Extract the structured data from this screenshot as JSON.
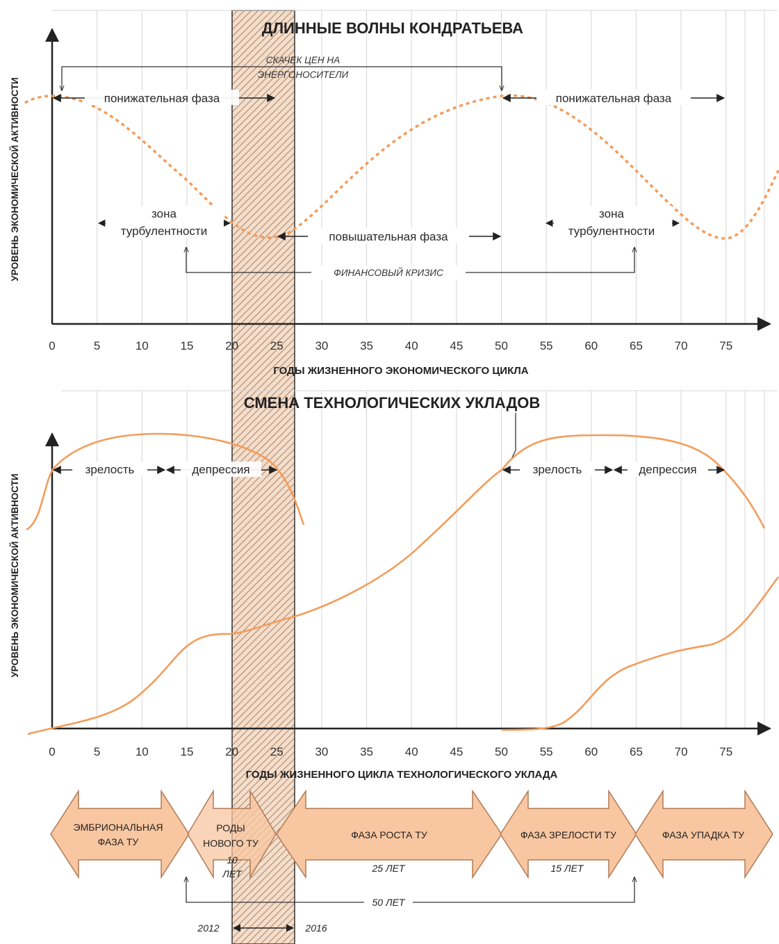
{
  "colors": {
    "curve": "#f39c5a",
    "arrow_fill": "#f8c6a0",
    "arrow_stroke": "#b07a55",
    "grid": "#d5d5d5",
    "axis": "#222222"
  },
  "top_chart": {
    "title": "ДЛИННЫЕ ВОЛНЫ КОНДРАТЬЕВА",
    "ylabel": "УРОВЕНЬ ЭКОНОМИЧЕСКОЙ АКТИВНОСТИ",
    "xlabel": "ГОДЫ ЖИЗНЕННОГО ЭКОНОМИЧЕСКОГО ЦИКЛА",
    "ticks": [
      "0",
      "5",
      "10",
      "15",
      "20",
      "25",
      "30",
      "35",
      "40",
      "45",
      "50",
      "55",
      "60",
      "65",
      "70",
      "75"
    ],
    "energy_jump_line1": "СКАЧЕК ЦЕН НА",
    "energy_jump_line2": "ЭНЕРГОНОСИТЕЛИ",
    "down_phase_left": "понижательная фаза",
    "down_phase_right": "понижательная фаза",
    "up_phase": "повышательная фаза",
    "turbulence_left_1": "зона",
    "turbulence_left_2": "турбулентности",
    "turbulence_right_1": "зона",
    "turbulence_right_2": "турбулентности",
    "financial_crisis": "ФИНАНСОВЫЙ КРИЗИС"
  },
  "bottom_chart": {
    "title": "СМЕНА ТЕХНОЛОГИЧЕСКИХ УКЛАДОВ",
    "ylabel": "УРОВЕНЬ ЭКОНОМИЧЕСКОЙ АКТИВНОСТИ",
    "xlabel": "ГОДЫ ЖИЗНЕННОГО ЦИКЛА ТЕХНОЛОГИЧЕСКОГО УКЛАДА",
    "ticks": [
      "0",
      "5",
      "10",
      "15",
      "20",
      "25",
      "30",
      "35",
      "40",
      "45",
      "50",
      "55",
      "60",
      "65",
      "70",
      "75"
    ],
    "maturity_left": "зрелость",
    "depression_left": "депрессия",
    "maturity_right": "зрелость",
    "depression_right": "депрессия"
  },
  "phases": {
    "embryonic_1": "ЭМБРИОНАЛЬНАЯ",
    "embryonic_2": "ФАЗА ТУ",
    "birth_1": "РОДЫ",
    "birth_2": "НОВОГО ТУ",
    "birth_years_1": "10",
    "birth_years_2": "ЛЕТ",
    "growth": "ФАЗА РОСТА ТУ",
    "growth_years": "25 ЛЕТ",
    "maturity": "ФАЗА ЗРЕЛОСТИ ТУ",
    "maturity_years": "15 ЛЕТ",
    "decline": "ФАЗА УПАДКА ТУ",
    "total_years": "50 ЛЕТ",
    "year_start": "2012",
    "year_end": "2016"
  }
}
